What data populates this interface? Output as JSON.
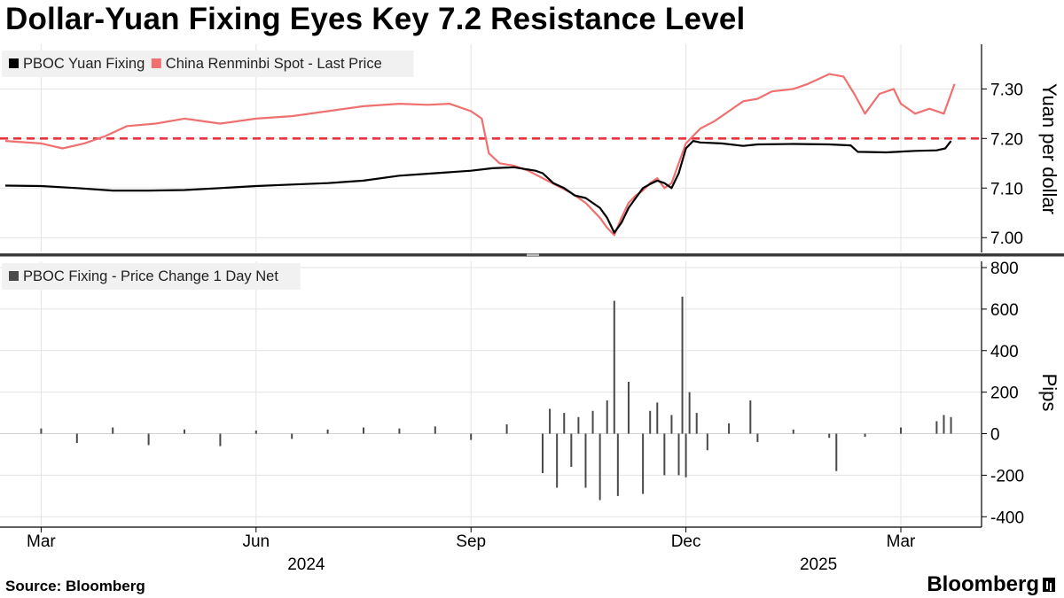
{
  "title": "Dollar-Yuan Fixing Eyes Key 7.2 Resistance Level",
  "source": "Source: Bloomberg",
  "brand": "Bloomberg",
  "colors": {
    "fixing": "#000000",
    "spot": "#f07070",
    "resistance": "#e8323c",
    "bars": "#4a4a4a",
    "grid": "#e3e3e3"
  },
  "chart_data": [
    {
      "type": "line",
      "ylabel": "Yuan per dollar",
      "ylim": [
        6.97,
        7.39
      ],
      "yticks": [
        7.0,
        7.1,
        7.2,
        7.3
      ],
      "ytick_labels": [
        "7.00",
        "7.10",
        "7.20",
        "7.30"
      ],
      "x_range_month_index": [
        1.5,
        14.75
      ],
      "reference_line": {
        "value": 7.2,
        "style": "dashed"
      },
      "legend": [
        "PBOC Yuan Fixing",
        "China Renminbi Spot - Last Price"
      ],
      "legend_position": "top-left",
      "series": [
        {
          "name": "PBOC Yuan Fixing",
          "color": "#000000",
          "points": [
            [
              1.5,
              7.105
            ],
            [
              2.0,
              7.104
            ],
            [
              2.5,
              7.1
            ],
            [
              3.0,
              7.095
            ],
            [
              3.5,
              7.095
            ],
            [
              4.0,
              7.096
            ],
            [
              4.5,
              7.1
            ],
            [
              5.0,
              7.104
            ],
            [
              5.5,
              7.107
            ],
            [
              6.0,
              7.11
            ],
            [
              6.5,
              7.115
            ],
            [
              7.0,
              7.125
            ],
            [
              7.5,
              7.13
            ],
            [
              8.0,
              7.135
            ],
            [
              8.3,
              7.14
            ],
            [
              8.6,
              7.142
            ],
            [
              8.9,
              7.135
            ],
            [
              9.0,
              7.13
            ],
            [
              9.15,
              7.11
            ],
            [
              9.3,
              7.1
            ],
            [
              9.45,
              7.085
            ],
            [
              9.6,
              7.08
            ],
            [
              9.8,
              7.06
            ],
            [
              9.9,
              7.04
            ],
            [
              10.0,
              7.01
            ],
            [
              10.1,
              7.03
            ],
            [
              10.2,
              7.06
            ],
            [
              10.3,
              7.08
            ],
            [
              10.4,
              7.1
            ],
            [
              10.5,
              7.108
            ],
            [
              10.6,
              7.115
            ],
            [
              10.7,
              7.11
            ],
            [
              10.8,
              7.1
            ],
            [
              10.9,
              7.13
            ],
            [
              11.0,
              7.18
            ],
            [
              11.1,
              7.195
            ],
            [
              11.2,
              7.192
            ],
            [
              11.5,
              7.19
            ],
            [
              11.8,
              7.185
            ],
            [
              12.0,
              7.188
            ],
            [
              12.5,
              7.189
            ],
            [
              13.0,
              7.188
            ],
            [
              13.3,
              7.186
            ],
            [
              13.4,
              7.173
            ],
            [
              13.8,
              7.172
            ],
            [
              14.2,
              7.175
            ],
            [
              14.5,
              7.176
            ],
            [
              14.62,
              7.18
            ],
            [
              14.7,
              7.195
            ]
          ]
        },
        {
          "name": "China Renminbi Spot - Last Price",
          "color": "#f07070",
          "points": [
            [
              1.5,
              7.195
            ],
            [
              2.0,
              7.19
            ],
            [
              2.3,
              7.18
            ],
            [
              2.6,
              7.19
            ],
            [
              2.9,
              7.205
            ],
            [
              3.2,
              7.225
            ],
            [
              3.6,
              7.23
            ],
            [
              4.0,
              7.24
            ],
            [
              4.5,
              7.23
            ],
            [
              5.0,
              7.24
            ],
            [
              5.5,
              7.245
            ],
            [
              6.0,
              7.255
            ],
            [
              6.5,
              7.265
            ],
            [
              7.0,
              7.27
            ],
            [
              7.4,
              7.268
            ],
            [
              7.7,
              7.27
            ],
            [
              8.0,
              7.255
            ],
            [
              8.15,
              7.24
            ],
            [
              8.25,
              7.17
            ],
            [
              8.4,
              7.15
            ],
            [
              8.6,
              7.145
            ],
            [
              8.8,
              7.135
            ],
            [
              9.0,
              7.12
            ],
            [
              9.2,
              7.105
            ],
            [
              9.4,
              7.09
            ],
            [
              9.6,
              7.07
            ],
            [
              9.8,
              7.04
            ],
            [
              9.9,
              7.02
            ],
            [
              10.0,
              7.005
            ],
            [
              10.1,
              7.04
            ],
            [
              10.2,
              7.07
            ],
            [
              10.3,
              7.085
            ],
            [
              10.4,
              7.095
            ],
            [
              10.5,
              7.11
            ],
            [
              10.6,
              7.12
            ],
            [
              10.7,
              7.1
            ],
            [
              10.8,
              7.11
            ],
            [
              10.9,
              7.15
            ],
            [
              11.0,
              7.19
            ],
            [
              11.2,
              7.22
            ],
            [
              11.4,
              7.235
            ],
            [
              11.6,
              7.255
            ],
            [
              11.8,
              7.275
            ],
            [
              12.0,
              7.28
            ],
            [
              12.2,
              7.295
            ],
            [
              12.5,
              7.3
            ],
            [
              12.7,
              7.31
            ],
            [
              13.0,
              7.33
            ],
            [
              13.2,
              7.325
            ],
            [
              13.35,
              7.29
            ],
            [
              13.5,
              7.25
            ],
            [
              13.7,
              7.29
            ],
            [
              13.9,
              7.3
            ],
            [
              14.0,
              7.27
            ],
            [
              14.2,
              7.25
            ],
            [
              14.4,
              7.26
            ],
            [
              14.6,
              7.25
            ],
            [
              14.75,
              7.31
            ]
          ]
        }
      ]
    },
    {
      "type": "bar",
      "ylabel": "Pips",
      "ylim": [
        -450,
        830
      ],
      "yticks": [
        800,
        600,
        400,
        200,
        0,
        -200,
        -400
      ],
      "ytick_labels": [
        "800",
        "600",
        "400",
        "200",
        "0",
        "-200",
        "-400"
      ],
      "legend": [
        "PBOC Fixing - Price Change 1 Day Net"
      ],
      "legend_position": "top-left",
      "series": [
        {
          "name": "PBOC Fixing - Price Change 1 Day Net",
          "color": "#4a4a4a",
          "points": [
            [
              2.0,
              25
            ],
            [
              2.5,
              -45
            ],
            [
              3.0,
              30
            ],
            [
              3.5,
              -55
            ],
            [
              4.0,
              20
            ],
            [
              4.5,
              -60
            ],
            [
              5.0,
              15
            ],
            [
              5.5,
              -25
            ],
            [
              6.0,
              20
            ],
            [
              6.5,
              30
            ],
            [
              7.0,
              25
            ],
            [
              7.5,
              35
            ],
            [
              8.0,
              -30
            ],
            [
              8.5,
              45
            ],
            [
              9.0,
              -190
            ],
            [
              9.1,
              120
            ],
            [
              9.2,
              -260
            ],
            [
              9.3,
              100
            ],
            [
              9.4,
              -160
            ],
            [
              9.5,
              80
            ],
            [
              9.6,
              -260
            ],
            [
              9.7,
              110
            ],
            [
              9.8,
              -320
            ],
            [
              9.9,
              160
            ],
            [
              10.0,
              640
            ],
            [
              10.05,
              -300
            ],
            [
              10.2,
              250
            ],
            [
              10.4,
              -290
            ],
            [
              10.5,
              110
            ],
            [
              10.6,
              150
            ],
            [
              10.7,
              -200
            ],
            [
              10.8,
              90
            ],
            [
              10.9,
              -200
            ],
            [
              10.95,
              660
            ],
            [
              11.0,
              -210
            ],
            [
              11.05,
              200
            ],
            [
              11.15,
              100
            ],
            [
              11.3,
              -80
            ],
            [
              11.6,
              50
            ],
            [
              11.9,
              160
            ],
            [
              12.0,
              -40
            ],
            [
              12.5,
              20
            ],
            [
              13.0,
              -20
            ],
            [
              13.1,
              -180
            ],
            [
              13.5,
              -15
            ],
            [
              14.0,
              30
            ],
            [
              14.5,
              60
            ],
            [
              14.6,
              90
            ],
            [
              14.7,
              80
            ]
          ]
        }
      ]
    }
  ],
  "x_axis": {
    "month_labels": [
      {
        "m": 2.0,
        "label": "Mar"
      },
      {
        "m": 5.0,
        "label": "Jun"
      },
      {
        "m": 8.0,
        "label": "Sep"
      },
      {
        "m": 11.0,
        "label": "Dec"
      },
      {
        "m": 14.0,
        "label": "Mar"
      }
    ],
    "year_labels": [
      {
        "m": 5.7,
        "label": "2024"
      },
      {
        "m": 12.85,
        "label": "2025"
      }
    ],
    "year_dividers": [],
    "month_index_note": ""
  }
}
